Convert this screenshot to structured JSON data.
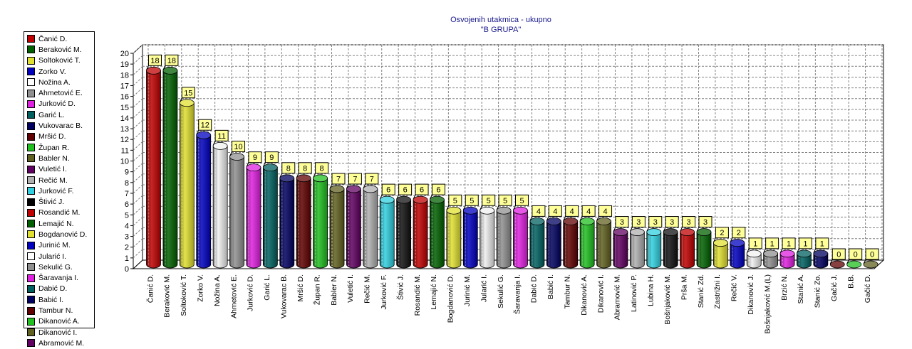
{
  "chart_data": {
    "type": "bar",
    "title": "Osvojenih utakmica - ukupno",
    "subtitle": "\"B GRUPA\"",
    "ylim": [
      0,
      20
    ],
    "yticks": [
      0,
      1,
      2,
      3,
      4,
      5,
      6,
      7,
      8,
      9,
      10,
      11,
      12,
      13,
      14,
      15,
      16,
      17,
      18,
      19,
      20
    ],
    "grid": true,
    "legend_placement": "left",
    "categories": [
      "Čanić D.",
      "Beraković M.",
      "Soltoković T.",
      "Zorko V.",
      "Nožina A.",
      "Ahmetović E.",
      "Jurković D.",
      "Garić L.",
      "Vukovarac B.",
      "Mršić D.",
      "Župan R.",
      "Babler N.",
      "Vuletić I.",
      "Rečić M.",
      "Jurković F.",
      "Štivić J.",
      "Rosandić M.",
      "Lemajić N.",
      "Bogdanović D.",
      "Jurinić M.",
      "Jularić I.",
      "Sekulić G.",
      "Šaravanja I.",
      "Dabić D.",
      "Babić I.",
      "Tambur N.",
      "Dikanović A.",
      "Dikanović I.",
      "Abramović M.",
      "Latinović P.",
      "Lubina H.",
      "Bošnjaković M.",
      "Prša M.",
      "Stanić Zd.",
      "Zastrižni I.",
      "Rečić V.",
      "Dikanović J.",
      "Bošnjaković M.(L)",
      "Brzić N.",
      "Stanić A.",
      "Stanić Zo.",
      "Gačić J.",
      "B.B.",
      "Gačić D."
    ],
    "values": [
      18,
      18,
      15,
      12,
      11,
      10,
      9,
      9,
      8,
      8,
      8,
      7,
      7,
      7,
      6,
      6,
      6,
      6,
      5,
      5,
      5,
      5,
      5,
      4,
      4,
      4,
      4,
      4,
      3,
      3,
      3,
      3,
      3,
      3,
      2,
      2,
      1,
      1,
      1,
      1,
      1,
      0,
      0,
      0
    ],
    "colors": [
      "#c00000",
      "#006000",
      "#e0e030",
      "#0000c0",
      "#f0f0f0",
      "#909090",
      "#e020e0",
      "#006060",
      "#000060",
      "#600000",
      "#20c020",
      "#606020",
      "#600060",
      "#b0b0b0",
      "#30d0e0",
      "#101010",
      "#c00000",
      "#006000",
      "#e0e030",
      "#0000c0",
      "#f0f0f0",
      "#909090",
      "#e020e0",
      "#006060",
      "#000060",
      "#600000",
      "#20c020",
      "#606020",
      "#600060",
      "#b0b0b0",
      "#30d0e0",
      "#101010",
      "#c00000",
      "#006000",
      "#e0e030",
      "#0000c0",
      "#f0f0f0",
      "#909090",
      "#e020e0",
      "#006060",
      "#000060",
      "#600000",
      "#20c020",
      "#606020"
    ]
  },
  "legend": {
    "items": [
      {
        "label": "Čanić D.",
        "color": "#c00000"
      },
      {
        "label": "Beraković M.",
        "color": "#006000"
      },
      {
        "label": "Soltoković T.",
        "color": "#e0e030"
      },
      {
        "label": "Zorko V.",
        "color": "#0000c0"
      },
      {
        "label": "Nožina A.",
        "color": "#ffffff"
      },
      {
        "label": "Ahmetović E.",
        "color": "#909090"
      },
      {
        "label": "Jurković D.",
        "color": "#e020e0"
      },
      {
        "label": "Garić L.",
        "color": "#006060"
      },
      {
        "label": "Vukovarac B.",
        "color": "#000060"
      },
      {
        "label": "Mršić D.",
        "color": "#600000"
      },
      {
        "label": "Župan R.",
        "color": "#20c020"
      },
      {
        "label": "Babler N.",
        "color": "#606020"
      },
      {
        "label": "Vuletić I.",
        "color": "#600060"
      },
      {
        "label": "Rečić M.",
        "color": "#b0b0b0"
      },
      {
        "label": "Jurković F.",
        "color": "#30d0e0"
      },
      {
        "label": "Štivić J.",
        "color": "#000000"
      },
      {
        "label": "Rosandić M.",
        "color": "#c00000"
      },
      {
        "label": "Lemajić N.",
        "color": "#006000"
      },
      {
        "label": "Bogdanović D.",
        "color": "#e0e030"
      },
      {
        "label": "Jurinić M.",
        "color": "#0000c0"
      },
      {
        "label": "Jularić I.",
        "color": "#ffffff"
      },
      {
        "label": "Sekulić G.",
        "color": "#909090"
      },
      {
        "label": "Šaravanja I.",
        "color": "#e020e0"
      },
      {
        "label": "Dabić D.",
        "color": "#006060"
      },
      {
        "label": "Babić I.",
        "color": "#000060"
      },
      {
        "label": "Tambur N.",
        "color": "#600000"
      },
      {
        "label": "Dikanović A.",
        "color": "#20c020"
      },
      {
        "label": "Dikanović I.",
        "color": "#606020"
      },
      {
        "label": "Abramović M.",
        "color": "#600060"
      }
    ]
  }
}
